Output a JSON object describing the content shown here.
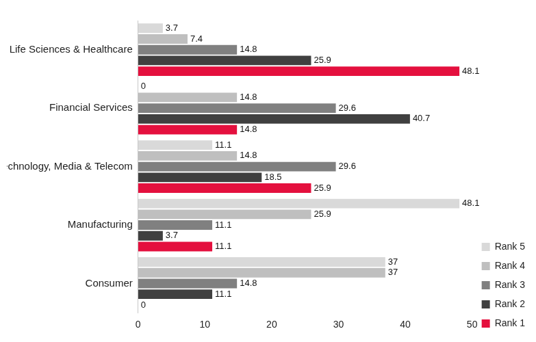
{
  "chart_data": {
    "type": "bar",
    "orientation": "horizontal",
    "categories": [
      "Life Sciences & Healthcare",
      "Financial Services",
      "Technology, Media & Telecom",
      "Manufacturing",
      "Consumer"
    ],
    "series": [
      {
        "name": "Rank 5",
        "color": "#d9d9d9",
        "values": [
          3.7,
          0,
          11.1,
          48.1,
          37
        ]
      },
      {
        "name": "Rank 4",
        "color": "#bfbfbf",
        "values": [
          7.4,
          14.8,
          14.8,
          25.9,
          37
        ]
      },
      {
        "name": "Rank 3",
        "color": "#808080",
        "values": [
          14.8,
          29.6,
          29.6,
          11.1,
          14.8
        ]
      },
      {
        "name": "Rank 2",
        "color": "#404040",
        "values": [
          25.9,
          40.7,
          18.5,
          3.7,
          11.1
        ]
      },
      {
        "name": "Rank 1",
        "color": "#e4103e",
        "values": [
          48.1,
          14.8,
          25.9,
          11.1,
          0
        ]
      }
    ],
    "xlim": [
      0,
      50
    ],
    "xticks": [
      0,
      10,
      20,
      30,
      40,
      50
    ],
    "grid": false,
    "legend": "lower right",
    "data_labels": true
  }
}
